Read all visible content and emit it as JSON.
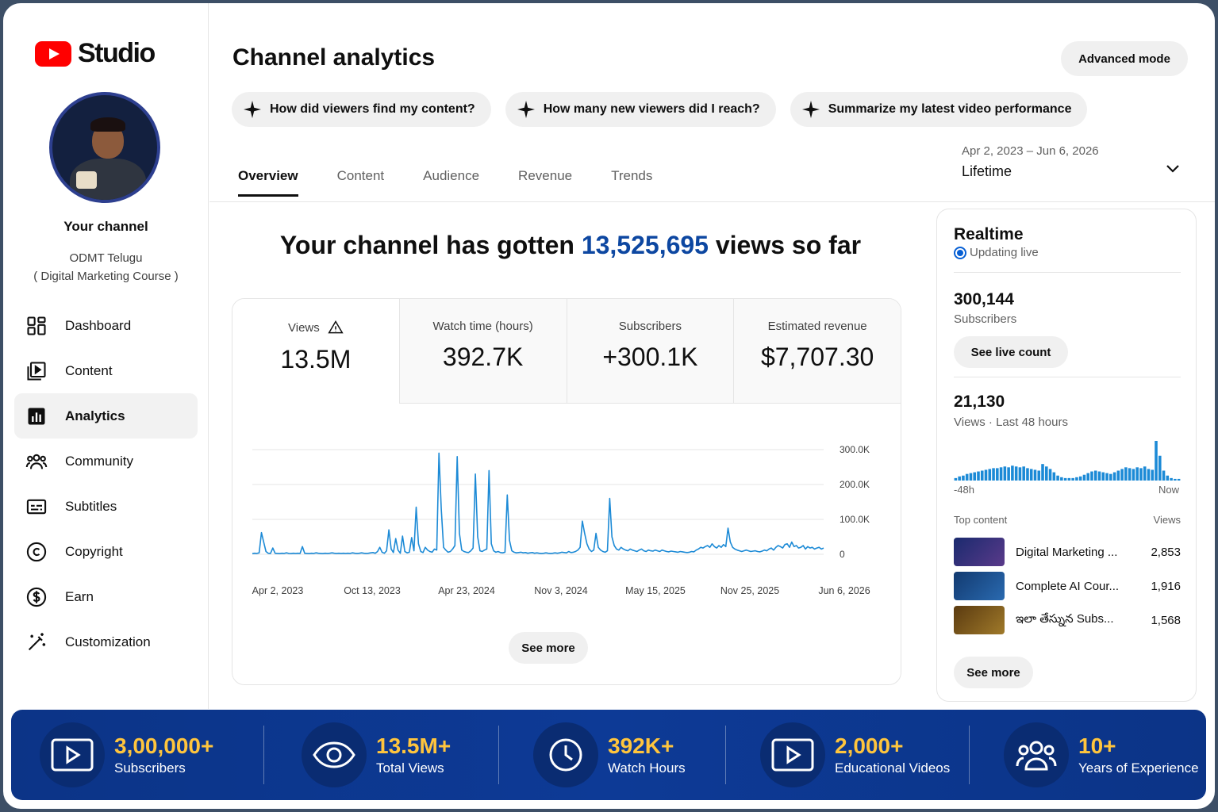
{
  "app": {
    "logo_text": "Studio"
  },
  "sidebar": {
    "channel_title": "Your channel",
    "channel_name_line1": "ODMT Telugu",
    "channel_name_line2": "( Digital Marketing Course )",
    "items": [
      {
        "label": "Dashboard",
        "icon": "dashboard-icon"
      },
      {
        "label": "Content",
        "icon": "content-icon"
      },
      {
        "label": "Analytics",
        "icon": "analytics-icon",
        "active": true
      },
      {
        "label": "Community",
        "icon": "community-icon"
      },
      {
        "label": "Subtitles",
        "icon": "subtitles-icon"
      },
      {
        "label": "Copyright",
        "icon": "copyright-icon"
      },
      {
        "label": "Earn",
        "icon": "earn-icon"
      },
      {
        "label": "Customization",
        "icon": "customization-icon"
      }
    ]
  },
  "header": {
    "title": "Channel analytics",
    "advanced_mode": "Advanced mode",
    "chips": [
      "How did viewers find my content?",
      "How many new viewers did I reach?",
      "Summarize my latest video performance"
    ],
    "tabs": [
      "Overview",
      "Content",
      "Audience",
      "Revenue",
      "Trends"
    ],
    "date_range": "Apr 2, 2023 – Jun 6, 2026",
    "date_label": "Lifetime"
  },
  "headline": {
    "prefix": "Your channel has gotten ",
    "number": "13,525,695",
    "suffix": " views so far"
  },
  "kpis": [
    {
      "label": "Views",
      "value": "13.5M"
    },
    {
      "label": "Watch time (hours)",
      "value": "392.7K"
    },
    {
      "label": "Subscribers",
      "value": "+300.1K"
    },
    {
      "label": "Estimated revenue",
      "value": "$7,707.30"
    }
  ],
  "overview_see_more": "See more",
  "chart_data": {
    "type": "line",
    "x_tick_labels": [
      "Apr 2, 2023",
      "Oct 13, 2023",
      "Apr 23, 2024",
      "Nov 3, 2024",
      "May 15, 2025",
      "Nov 25, 2025",
      "Jun 6, 2026"
    ],
    "y_tick_labels": [
      "300.0K",
      "200.0K",
      "100.0K",
      "0"
    ],
    "ylim": [
      0,
      300000
    ],
    "grid": true,
    "color": "#1c8ad6",
    "series": [
      {
        "values": [
          2000,
          3000,
          2500,
          4000,
          62000,
          35000,
          8000,
          3000,
          2500,
          18000,
          3000,
          2500,
          2000,
          3000,
          2500,
          4000,
          2500,
          2000,
          3000,
          2500,
          3000,
          2500,
          22000,
          3000,
          2500,
          2000,
          3000,
          2500,
          4000,
          3000,
          2500,
          2000,
          3000,
          2500,
          3000,
          4000,
          3000,
          2500,
          3000,
          2500,
          3000,
          2500,
          3000,
          2500,
          4000,
          3000,
          2500,
          3000,
          4000,
          3000,
          2500,
          3000,
          4000,
          5000,
          3000,
          8000,
          20000,
          6000,
          3000,
          10000,
          70000,
          15000,
          5000,
          45000,
          12000,
          3000,
          52000,
          8000,
          4000,
          6000,
          48000,
          10000,
          135000,
          30000,
          8000,
          5000,
          20000,
          12000,
          8000,
          6000,
          15000,
          12000,
          290000,
          130000,
          20000,
          12000,
          6000,
          8000,
          15000,
          25000,
          280000,
          60000,
          12000,
          8000,
          6000,
          5000,
          10000,
          18000,
          230000,
          50000,
          10000,
          8000,
          12000,
          15000,
          240000,
          30000,
          10000,
          6000,
          8000,
          5000,
          4000,
          6000,
          170000,
          40000,
          10000,
          6000,
          4000,
          5000,
          6000,
          4000,
          5000,
          3000,
          4000,
          5000,
          3000,
          4000,
          3000,
          2500,
          3000,
          4000,
          3000,
          2500,
          3000,
          4000,
          3000,
          4000,
          6000,
          5000,
          4000,
          8000,
          5000,
          6000,
          8000,
          12000,
          20000,
          95000,
          60000,
          30000,
          15000,
          8000,
          12000,
          60000,
          20000,
          12000,
          8000,
          6000,
          10000,
          160000,
          50000,
          25000,
          15000,
          12000,
          20000,
          15000,
          12000,
          10000,
          15000,
          12000,
          10000,
          8000,
          12000,
          15000,
          10000,
          8000,
          12000,
          10000,
          9000,
          12000,
          10000,
          8000,
          12000,
          10000,
          8000,
          7000,
          9000,
          8000,
          7000,
          6000,
          8000,
          7000,
          6000,
          5000,
          6000,
          8000,
          7000,
          12000,
          15000,
          20000,
          18000,
          22000,
          25000,
          20000,
          30000,
          22000,
          18000,
          25000,
          20000,
          28000,
          22000,
          75000,
          35000,
          20000,
          15000,
          12000,
          10000,
          8000,
          10000,
          12000,
          10000,
          8000,
          9000,
          10000,
          8000,
          7000,
          9000,
          12000,
          10000,
          15000,
          18000,
          12000,
          20000,
          25000,
          22000,
          18000,
          28000,
          30000,
          20000,
          35000,
          22000,
          25000,
          18000,
          20000,
          25000,
          15000,
          22000,
          18000,
          20000,
          15000,
          18000,
          20000,
          15000,
          18000
        ]
      }
    ]
  },
  "realtime": {
    "title": "Realtime",
    "live_text": "Updating live",
    "subscribers_value": "300,144",
    "subscribers_label": "Subscribers",
    "live_count_button": "See live count",
    "views_value": "21,130",
    "views_label": "Views · Last 48 hours",
    "axis_start": "-48h",
    "axis_end": "Now",
    "spark_values": [
      3,
      5,
      6,
      8,
      9,
      10,
      11,
      12,
      13,
      14,
      15,
      15,
      16,
      17,
      16,
      18,
      17,
      16,
      17,
      15,
      14,
      13,
      12,
      20,
      17,
      14,
      10,
      6,
      4,
      3,
      3,
      3,
      4,
      5,
      7,
      9,
      11,
      12,
      11,
      10,
      9,
      8,
      10,
      12,
      14,
      16,
      15,
      14,
      16,
      15,
      17,
      14,
      13,
      48,
      30,
      12,
      6,
      3,
      2,
      2
    ],
    "top_header_left": "Top content",
    "top_header_right": "Views",
    "top_content": [
      {
        "title": "Digital Marketing ...",
        "views": "2,853",
        "thumb_color": "#2a3a8a"
      },
      {
        "title": "Complete AI Cour...",
        "views": "1,916",
        "thumb_color": "#1d4f8c"
      },
      {
        "title": "ఇలా తేస్నున Subs...",
        "views": "1,568",
        "thumb_color": "#7a5a1e"
      }
    ],
    "see_more": "See more"
  },
  "banner": [
    {
      "value": "3,00,000+",
      "label": "Subscribers",
      "icon": "play-icon"
    },
    {
      "value": "13.5M+",
      "label": "Total Views",
      "icon": "eye-icon"
    },
    {
      "value": "392K+",
      "label": "Watch Hours",
      "icon": "clock-icon"
    },
    {
      "value": "2,000+",
      "label": "Educational Videos",
      "icon": "play-icon"
    },
    {
      "value": "10+",
      "label": "Years of Experience",
      "icon": "people-icon"
    }
  ]
}
